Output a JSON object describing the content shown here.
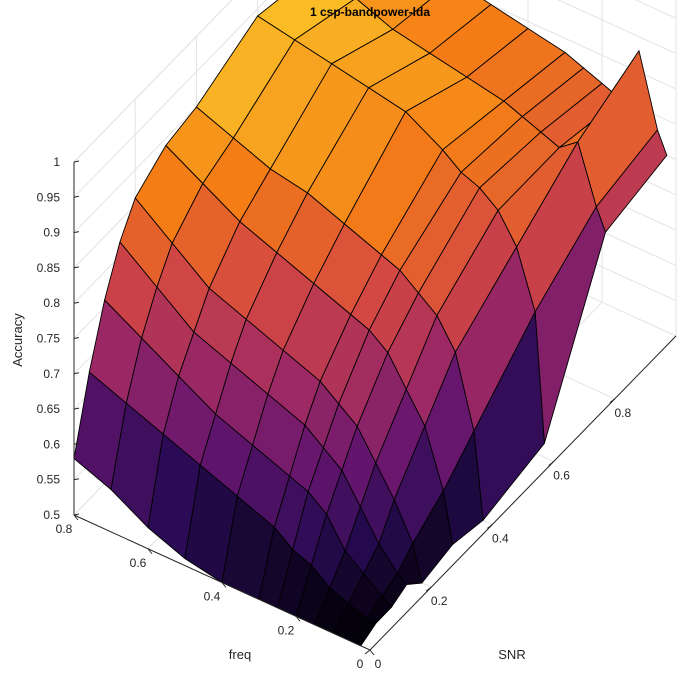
{
  "chart_data": {
    "type": "surface",
    "title": "1 csp-bandpower-lda",
    "xlabel": "SNR",
    "ylabel": "freq",
    "zlabel": "Accuracy",
    "xlim": [
      0,
      1
    ],
    "ylim": [
      0,
      0.8
    ],
    "zlim": [
      0.5,
      1
    ],
    "xticks": [
      "0",
      "0.2",
      "0.4",
      "0.6",
      "0.8"
    ],
    "yticks": [
      "0",
      "0.2",
      "0.4",
      "0.6",
      "0.8"
    ],
    "zticks": [
      "0.5",
      "0.55",
      "0.6",
      "0.65",
      "0.7",
      "0.75",
      "0.8",
      "0.85",
      "0.9",
      "0.95",
      "1"
    ],
    "grid": true,
    "colormap": "inferno",
    "snr": [
      0,
      0.05,
      0.1,
      0.15,
      0.2,
      0.3,
      0.4,
      0.6,
      0.8,
      1.0
    ],
    "freq": [
      0.025,
      0.05,
      0.1,
      0.15,
      0.2,
      0.25,
      0.3,
      0.4,
      0.5,
      0.6,
      0.7,
      0.8
    ],
    "accuracy": [
      [
        0.5,
        0.51,
        0.51,
        0.52,
        0.5,
        0.51,
        0.5,
        0.52,
        0.73,
        0.75
      ],
      [
        0.5,
        0.51,
        0.52,
        0.53,
        0.55,
        0.58,
        0.62,
        0.7,
        0.76,
        0.78
      ],
      [
        0.5,
        0.52,
        0.54,
        0.56,
        0.6,
        0.66,
        0.72,
        0.78,
        0.84,
        0.88
      ],
      [
        0.5,
        0.53,
        0.56,
        0.6,
        0.64,
        0.7,
        0.76,
        0.82,
        0.82,
        0.8
      ],
      [
        0.5,
        0.55,
        0.6,
        0.64,
        0.68,
        0.74,
        0.78,
        0.84,
        0.83,
        0.81
      ],
      [
        0.5,
        0.56,
        0.62,
        0.66,
        0.7,
        0.76,
        0.8,
        0.85,
        0.84,
        0.82
      ],
      [
        0.5,
        0.58,
        0.63,
        0.68,
        0.72,
        0.77,
        0.81,
        0.87,
        0.85,
        0.83
      ],
      [
        0.5,
        0.6,
        0.65,
        0.7,
        0.74,
        0.79,
        0.83,
        0.9,
        0.86,
        0.84
      ],
      [
        0.51,
        0.62,
        0.67,
        0.72,
        0.76,
        0.81,
        0.85,
        0.91,
        0.87,
        0.85
      ],
      [
        0.53,
        0.64,
        0.7,
        0.74,
        0.78,
        0.83,
        0.86,
        0.92,
        0.88,
        0.86
      ],
      [
        0.56,
        0.66,
        0.73,
        0.78,
        0.82,
        0.86,
        0.88,
        0.93,
        0.9,
        0.88
      ],
      [
        0.58,
        0.68,
        0.76,
        0.82,
        0.86,
        0.89,
        0.9,
        0.94,
        0.92,
        0.9
      ]
    ]
  }
}
